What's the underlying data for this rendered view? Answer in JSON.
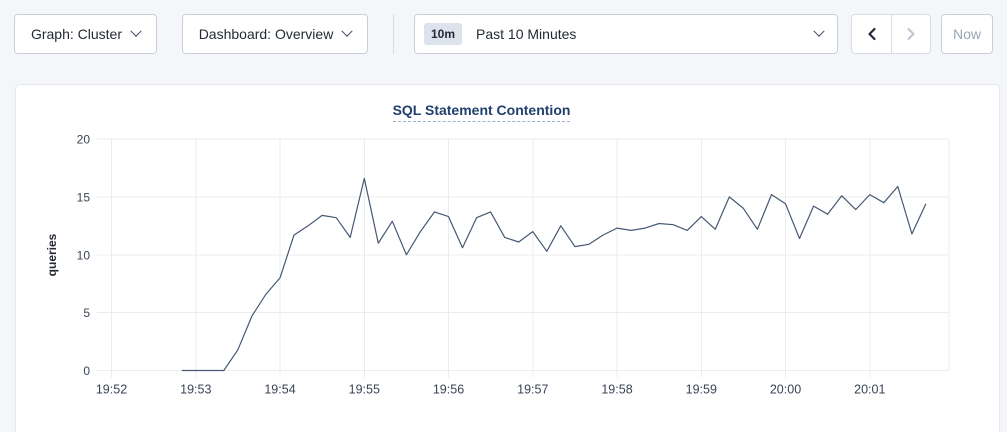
{
  "toolbar": {
    "graph_dropdown": {
      "label": "Graph: Cluster"
    },
    "dashboard_dropdown": {
      "label": "Dashboard: Overview"
    },
    "time_picker": {
      "badge": "10m",
      "label": "Past 10 Minutes"
    },
    "now_button": {
      "label": "Now"
    }
  },
  "icons": {
    "graph_dropdown": "chevron-down",
    "dashboard_dropdown": "chevron-down",
    "time_picker": "chevron-down",
    "prev_range": "chevron-left",
    "next_range": "chevron-right"
  },
  "colors": {
    "page_background": "#f4f6fa",
    "card_background": "#ffffff",
    "title_navy": "#20406e",
    "text_dark": "#242a35",
    "disabled_gray": "#9aa5b5",
    "line_color": "#475872",
    "grid_color": "#ececec"
  },
  "chart_data": {
    "type": "line",
    "title": "SQL Statement Contention",
    "ylabel": "queries",
    "xlabel": "",
    "ylim": [
      0,
      20
    ],
    "yticks": [
      0,
      5,
      10,
      15,
      20
    ],
    "xticks": [
      "19:52",
      "19:53",
      "19:54",
      "19:55",
      "19:56",
      "19:57",
      "19:58",
      "19:59",
      "20:00",
      "20:01"
    ],
    "grid": true,
    "legend": "none",
    "line_color": "#475872",
    "interval_seconds": 10,
    "times": [
      "19:52:50",
      "19:53:00",
      "19:53:10",
      "19:53:20",
      "19:53:30",
      "19:53:40",
      "19:53:50",
      "19:54:00",
      "19:54:10",
      "19:54:20",
      "19:54:30",
      "19:54:40",
      "19:54:50",
      "19:55:00",
      "19:55:10",
      "19:55:20",
      "19:55:30",
      "19:55:40",
      "19:55:50",
      "19:56:00",
      "19:56:10",
      "19:56:20",
      "19:56:30",
      "19:56:40",
      "19:56:50",
      "19:57:00",
      "19:57:10",
      "19:57:20",
      "19:57:30",
      "19:57:40",
      "19:57:50",
      "19:58:00",
      "19:58:10",
      "19:58:20",
      "19:58:30",
      "19:58:40",
      "19:58:50",
      "19:59:00",
      "19:59:10",
      "19:59:20",
      "19:59:30",
      "19:59:40",
      "19:59:50",
      "20:00:00",
      "20:00:10",
      "20:00:20",
      "20:00:30",
      "20:00:40",
      "20:00:50",
      "20:01:00",
      "20:01:10",
      "20:01:20",
      "20:01:30",
      "20:01:40"
    ],
    "values": [
      0,
      0,
      0,
      0,
      1.8,
      4.7,
      6.6,
      8.0,
      11.7,
      12.5,
      13.4,
      13.2,
      11.5,
      16.6,
      11.0,
      12.9,
      10.0,
      12.0,
      13.7,
      13.3,
      10.6,
      13.2,
      13.7,
      11.5,
      11.1,
      12.0,
      10.3,
      12.5,
      10.7,
      10.9,
      11.7,
      12.3,
      12.1,
      12.3,
      12.7,
      12.6,
      12.1,
      13.3,
      12.2,
      15.0,
      14.0,
      12.2,
      15.2,
      14.4,
      11.4,
      14.2,
      13.5,
      15.1,
      13.9,
      15.2,
      14.5,
      15.9,
      11.8,
      14.4
    ]
  }
}
